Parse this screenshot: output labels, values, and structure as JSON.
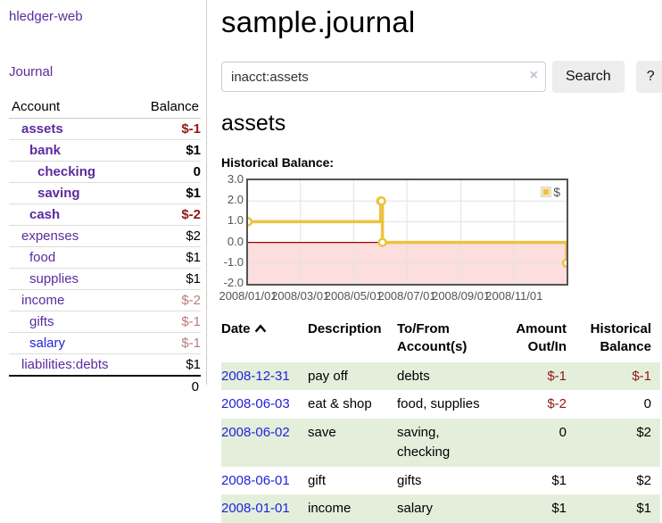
{
  "app": {
    "title": "hledger-web",
    "nav_journal": "Journal"
  },
  "sidebar": {
    "header": {
      "account": "Account",
      "balance": "Balance"
    },
    "rows": [
      {
        "account": "assets",
        "balance": "$-1",
        "depth": 1,
        "bold": true,
        "balance_style": "neg-strong",
        "link_style": "visited"
      },
      {
        "account": "bank",
        "balance": "$1",
        "depth": 2,
        "bold": true,
        "balance_style": "pos",
        "link_style": "visited"
      },
      {
        "account": "checking",
        "balance": "0",
        "depth": 3,
        "bold": true,
        "balance_style": "pos",
        "link_style": "visited"
      },
      {
        "account": "saving",
        "balance": "$1",
        "depth": 3,
        "bold": true,
        "balance_style": "pos",
        "link_style": "visited"
      },
      {
        "account": "cash",
        "balance": "$-2",
        "depth": 2,
        "bold": true,
        "balance_style": "neg-strong",
        "link_style": "visited"
      },
      {
        "account": "expenses",
        "balance": "$2",
        "depth": 1,
        "bold": false,
        "balance_style": "pos",
        "link_style": "visited"
      },
      {
        "account": "food",
        "balance": "$1",
        "depth": 2,
        "bold": false,
        "balance_style": "pos",
        "link_style": "visited"
      },
      {
        "account": "supplies",
        "balance": "$1",
        "depth": 2,
        "bold": false,
        "balance_style": "pos",
        "link_style": "visited"
      },
      {
        "account": "income",
        "balance": "$-2",
        "depth": 1,
        "bold": false,
        "balance_style": "neg-soft",
        "link_style": "visited"
      },
      {
        "account": "gifts",
        "balance": "$-1",
        "depth": 2,
        "bold": false,
        "balance_style": "neg-soft",
        "link_style": "visited"
      },
      {
        "account": "salary",
        "balance": "$-1",
        "depth": 2,
        "bold": false,
        "balance_style": "neg-soft",
        "link_style": "unvisited"
      },
      {
        "account": "liabilities:debts",
        "balance": "$1",
        "depth": 1,
        "bold": false,
        "balance_style": "pos",
        "link_style": "visited"
      }
    ],
    "total": "0"
  },
  "header": {
    "title": "sample.journal"
  },
  "search": {
    "value": "inacct:assets",
    "clear_icon": "×",
    "button_label": "Search",
    "help_label": "?"
  },
  "account_page": {
    "title": "assets",
    "chart_label": "Historical Balance:"
  },
  "chart_data": {
    "type": "line",
    "style": "step",
    "title": "Historical Balance:",
    "series": [
      {
        "name": "$",
        "color": "#edc240",
        "points": [
          {
            "x": "2008-01-01",
            "y": 1
          },
          {
            "x": "2008-06-01",
            "y": 2
          },
          {
            "x": "2008-06-02",
            "y": 2
          },
          {
            "x": "2008-06-03",
            "y": 0
          },
          {
            "x": "2008-12-31",
            "y": -1
          }
        ]
      }
    ],
    "ylim": [
      -2,
      3
    ],
    "y_ticks": [
      "3.0",
      "2.0",
      "1.0",
      "0.0",
      "-1.0",
      "-2.0"
    ],
    "x_ticks": [
      "2008/01/01",
      "2008/03/01",
      "2008/05/01",
      "2008/07/01",
      "2008/09/01",
      "2008/11/01"
    ],
    "x_range": [
      "2008-01-01",
      "2008-12-31"
    ],
    "grid": true,
    "negative_region_fill": "#fcdede",
    "zero_line_color": "#a40000",
    "legend": {
      "label": "$",
      "position": "top-right"
    }
  },
  "register": {
    "columns": [
      {
        "label": "Date"
      },
      {
        "label": "Description"
      },
      {
        "label": "To/From Account(s)"
      },
      {
        "label": "Amount Out/In"
      },
      {
        "label": "Historical Balance"
      }
    ],
    "rows": [
      {
        "date": "2008-12-31",
        "description": "pay off",
        "accounts": "debts",
        "amount": "$-1",
        "amount_neg": true,
        "balance": "$-1",
        "balance_neg": true,
        "green": true
      },
      {
        "date": "2008-06-03",
        "description": "eat & shop",
        "accounts": "food, supplies",
        "amount": "$-2",
        "amount_neg": true,
        "balance": "0",
        "balance_neg": false,
        "green": false
      },
      {
        "date": "2008-06-02",
        "description": "save",
        "accounts": "saving, checking",
        "amount": "0",
        "amount_neg": false,
        "balance": "$2",
        "balance_neg": false,
        "green": true
      },
      {
        "date": "2008-06-01",
        "description": "gift",
        "accounts": "gifts",
        "amount": "$1",
        "amount_neg": false,
        "balance": "$2",
        "balance_neg": false,
        "green": false
      },
      {
        "date": "2008-01-01",
        "description": "income",
        "accounts": "salary",
        "amount": "$1",
        "amount_neg": false,
        "balance": "$1",
        "balance_neg": false,
        "green": true
      }
    ]
  }
}
